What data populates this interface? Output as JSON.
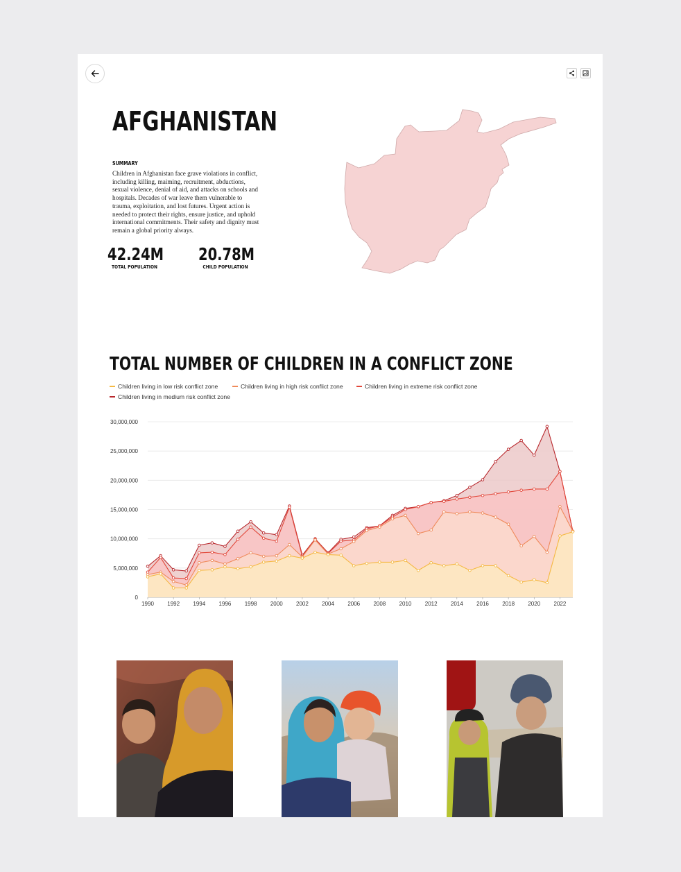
{
  "country": {
    "name": "AFGHANISTAN",
    "summary_label": "SUMMARY",
    "summary_text": "Children in Afghanistan face grave violations in conflict, including killing, maiming, recruitment, abductions, sexual violence, denial of aid, and attacks on schools and hospitals. Decades of war leave them vulnerable to trauma, exploitation, and lost futures. Urgent action is needed to protect their rights, ensure justice, and uphold international commitments. Their safety and dignity must remain a global priority always."
  },
  "stats": [
    {
      "value": "42.24M",
      "label": "TOTAL POPULATION"
    },
    {
      "value": "20.78M",
      "label": "CHILD POPULATION"
    }
  ],
  "toolbar": {
    "back_icon": "arrow-left-icon",
    "share_icon": "share-icon",
    "image_icon": "image-icon"
  },
  "colors": {
    "low": "#f5b942",
    "high": "#ef8a5a",
    "extreme": "#e2473a",
    "medium": "#b8282d",
    "map_fill": "#f6d3d3",
    "map_stroke": "#cfa9a9"
  },
  "chart_data": {
    "type": "area",
    "title": "TOTAL NUMBER OF CHILDREN IN A CONFLICT ZONE",
    "xlabel": "",
    "ylabel": "",
    "x": [
      1990,
      1991,
      1992,
      1993,
      1994,
      1995,
      1996,
      1997,
      1998,
      1999,
      2000,
      2001,
      2002,
      2003,
      2004,
      2005,
      2006,
      2007,
      2008,
      2009,
      2010,
      2011,
      2012,
      2013,
      2014,
      2015,
      2016,
      2017,
      2018,
      2019,
      2020,
      2021,
      2022,
      2023
    ],
    "x_ticks": [
      "1990",
      "1992",
      "1994",
      "1996",
      "1998",
      "2000",
      "2002",
      "2004",
      "2006",
      "2008",
      "2010",
      "2012",
      "2014",
      "2016",
      "2018",
      "2020",
      "2022"
    ],
    "y_ticks": [
      "0",
      "5,000,000",
      "10,000,000",
      "15,000,000",
      "20,000,000",
      "25,000,000",
      "30,000,000"
    ],
    "ylim": [
      0,
      30000000
    ],
    "grid": true,
    "legend_position": "top-left",
    "series": [
      {
        "name": "Children living in low risk conflict zone",
        "key": "low",
        "values": [
          3500000,
          4000000,
          1600000,
          1600000,
          4600000,
          4700000,
          5200000,
          4900000,
          5200000,
          6000000,
          6200000,
          7100000,
          6700000,
          7700000,
          7300000,
          7200000,
          5400000,
          5800000,
          6000000,
          6000000,
          6300000,
          4600000,
          5900000,
          5400000,
          5700000,
          4600000,
          5400000,
          5400000,
          3700000,
          2600000,
          3000000,
          2500000,
          10500000,
          11200000
        ]
      },
      {
        "name": "Children living in high risk conflict zone",
        "key": "high",
        "values": [
          3900000,
          4300000,
          2700000,
          2100000,
          5900000,
          6300000,
          5700000,
          6600000,
          7600000,
          7000000,
          7100000,
          9000000,
          6900000,
          9800000,
          7400000,
          8300000,
          9500000,
          11400000,
          12000000,
          13400000,
          14000000,
          10900000,
          11500000,
          14600000,
          14300000,
          14600000,
          14400000,
          13700000,
          12500000,
          8800000,
          10400000,
          7700000,
          15500000,
          11300000
        ]
      },
      {
        "name": "Children living in extreme risk conflict zone",
        "key": "extreme",
        "values": [
          4300000,
          6800000,
          3300000,
          3200000,
          7600000,
          7700000,
          7300000,
          9900000,
          12000000,
          10100000,
          9600000,
          15400000,
          7000000,
          9900000,
          7500000,
          9600000,
          9800000,
          11700000,
          12200000,
          13700000,
          15000000,
          15500000,
          16200000,
          16400000,
          16800000,
          17100000,
          17400000,
          17700000,
          18000000,
          18300000,
          18500000,
          18500000,
          21500000,
          11300000
        ]
      },
      {
        "name": "Children living in medium risk conflict zone",
        "key": "medium",
        "values": [
          5300000,
          7100000,
          4700000,
          4500000,
          8900000,
          9300000,
          8700000,
          11300000,
          12900000,
          11000000,
          10700000,
          15600000,
          7200000,
          10000000,
          7600000,
          9900000,
          10300000,
          11900000,
          12200000,
          14000000,
          15200000,
          15500000,
          16200000,
          16500000,
          17400000,
          18800000,
          20100000,
          23200000,
          25300000,
          26800000,
          24300000,
          29200000,
          21500000,
          11300000
        ]
      }
    ]
  },
  "photos": [
    {
      "name": "photo-children-1"
    },
    {
      "name": "photo-children-2"
    },
    {
      "name": "photo-children-3"
    }
  ]
}
